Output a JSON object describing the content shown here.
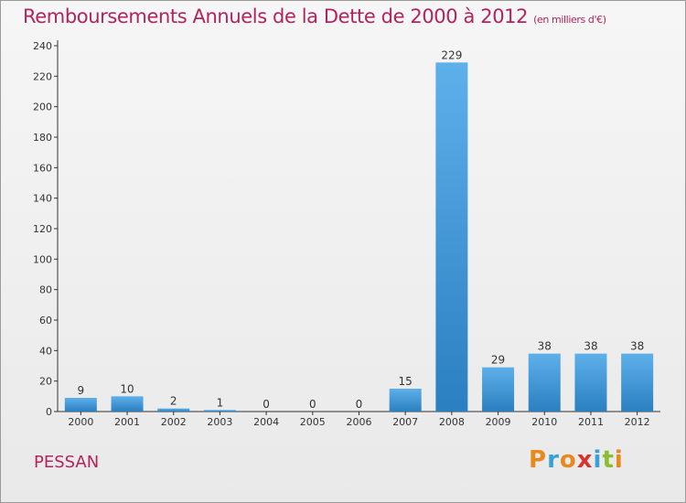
{
  "header": {
    "title": "Remboursements Annuels de la Dette de 2000 à 2012",
    "unit": "(en milliers d'€)"
  },
  "footer": {
    "city": "PESSAN",
    "logo": "Proxiti"
  },
  "colors": {
    "title": "#b3235d",
    "bar_top": "#5eb0ea",
    "bar_bottom": "#2a7fc0"
  },
  "chart_data": {
    "type": "bar",
    "categories": [
      "2000",
      "2001",
      "2002",
      "2003",
      "2004",
      "2005",
      "2006",
      "2007",
      "2008",
      "2009",
      "2010",
      "2011",
      "2012"
    ],
    "values": [
      9,
      10,
      2,
      1,
      0,
      0,
      0,
      15,
      229,
      29,
      38,
      38,
      38
    ],
    "ylim": [
      0,
      240
    ],
    "yticks": [
      0,
      20,
      40,
      60,
      80,
      100,
      120,
      140,
      160,
      180,
      200,
      220,
      240
    ],
    "grid": false,
    "data_labels": true
  }
}
